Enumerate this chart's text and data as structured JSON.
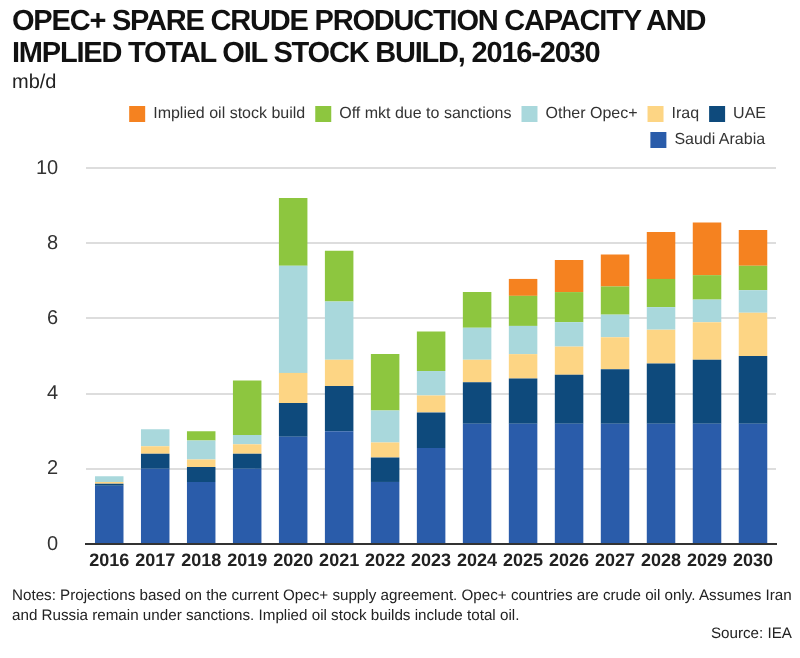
{
  "chart_data": {
    "type": "bar",
    "title": "OPEC+ SPARE CRUDE PRODUCTION CAPACITY AND IMPLIED TOTAL OIL STOCK BUILD, 2016-2030",
    "ylabel": "mb/d",
    "categories": [
      "2016",
      "2017",
      "2018",
      "2019",
      "2020",
      "2021",
      "2022",
      "2023",
      "2024",
      "2025",
      "2026",
      "2027",
      "2028",
      "2029",
      "2030"
    ],
    "stacked": true,
    "series": [
      {
        "name": "Saudi Arabia",
        "color": "#2a5caa",
        "values": [
          1.55,
          2.0,
          1.65,
          2.0,
          2.85,
          3.0,
          1.65,
          2.55,
          3.2,
          3.2,
          3.2,
          3.2,
          3.2,
          3.2,
          3.2
        ]
      },
      {
        "name": "UAE",
        "color": "#0e4a7c",
        "values": [
          0.05,
          0.4,
          0.4,
          0.4,
          0.9,
          1.2,
          0.65,
          0.95,
          1.1,
          1.2,
          1.3,
          1.45,
          1.6,
          1.7,
          1.8
        ]
      },
      {
        "name": "Iraq",
        "color": "#fdd584",
        "values": [
          0.05,
          0.2,
          0.2,
          0.25,
          0.8,
          0.7,
          0.4,
          0.45,
          0.6,
          0.65,
          0.75,
          0.85,
          0.9,
          1.0,
          1.15
        ]
      },
      {
        "name": "Other Opec+",
        "color": "#a9d8dc",
        "values": [
          0.15,
          0.45,
          0.5,
          0.25,
          2.85,
          1.55,
          0.85,
          0.65,
          0.85,
          0.75,
          0.65,
          0.6,
          0.6,
          0.6,
          0.6
        ]
      },
      {
        "name": "Off mkt due to sanctions",
        "color": "#8dc63f",
        "values": [
          null,
          null,
          0.25,
          1.45,
          1.8,
          1.35,
          1.5,
          1.05,
          0.95,
          0.8,
          0.8,
          0.75,
          0.75,
          0.65,
          0.65
        ]
      },
      {
        "name": "Implied oil stock build",
        "color": "#f58220",
        "values": [
          null,
          null,
          null,
          null,
          null,
          null,
          null,
          null,
          null,
          0.45,
          0.85,
          0.85,
          1.25,
          1.4,
          0.95
        ]
      }
    ],
    "ylim": [
      0,
      10
    ],
    "yticks": [
      0,
      2,
      4,
      6,
      8,
      10
    ],
    "grid": "y",
    "legend": "top right",
    "annotations": [
      "Notes: Projections based on the current Opec+ supply agreement. Opec+ countries are crude oil only. Assumes Iran and Russia remain under sanctions. Implied oil stock builds include total oil.",
      "Source: IEA"
    ]
  }
}
